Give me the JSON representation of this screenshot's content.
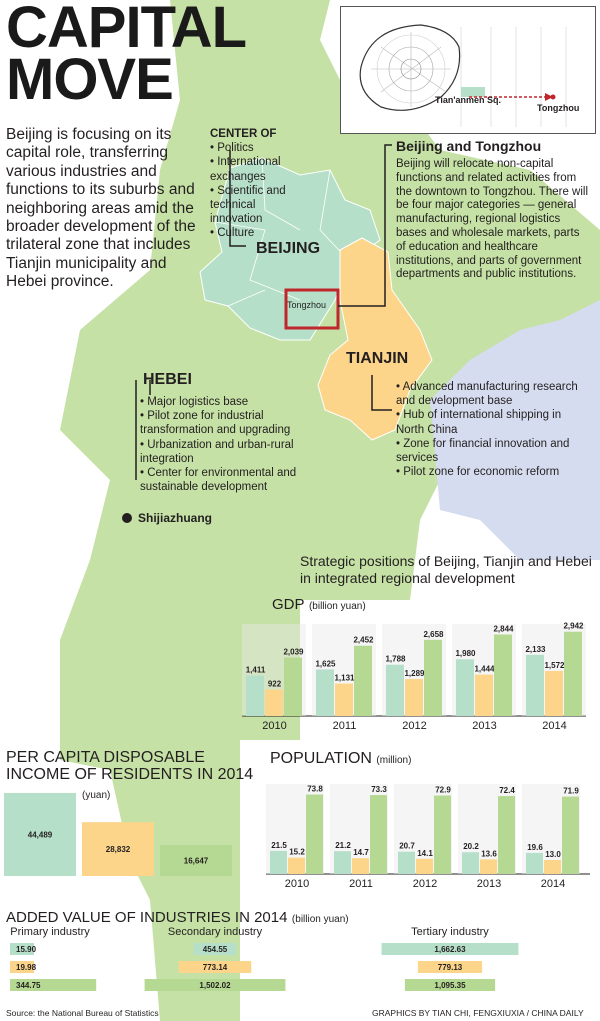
{
  "title": "CAPITAL\nMOVE",
  "intro": "Beijing is focusing on its capital role, transferring various industries and functions to its suburbs and neighboring areas amid the broader development of the trilateral zone that includes Tianjin municipality and Hebei province.",
  "colors": {
    "beijing": "#b6dfc9",
    "tianjin": "#fcd58a",
    "hebei": "#b5d992",
    "hebei_map": "#c5e1a5",
    "sea": "#d6dcef",
    "box": "#c0272d"
  },
  "center_of": {
    "heading": "CENTER OF",
    "items": [
      "• Politics",
      "• International exchanges",
      "• Scientific and technical innovation",
      "• Culture"
    ]
  },
  "map_labels": {
    "beijing": "BEIJING",
    "tianjin": "TIANJIN",
    "hebei": "HEBEI",
    "tongzhou": "Tongzhou",
    "shijiazhuang": "Shijiazhuang"
  },
  "inset": {
    "tiananmen": "Tian'anmen Sq.",
    "tongzhou": "Tongzhou"
  },
  "beijing_tongzhou": {
    "heading": "Beijing and Tongzhou",
    "text": "Beijing will relocate non-capital functions and related activities from the downtown to Tongzhou. There will be four major categories — general manufacturing, regional logistics bases and wholesale markets, parts of education and healthcare institutions, and parts of government departments and public institutions."
  },
  "tianjin_items": [
    "• Advanced manufacturing research and development base",
    "• Hub of international shipping in North China",
    "• Zone for financial innovation and services",
    "• Pilot zone for economic reform"
  ],
  "hebei_items": [
    "• Major logistics base",
    "• Pilot zone for industrial transformation and upgrading",
    "• Urbanization and urban-rural integration",
    "• Center for environmental and sustainable development"
  ],
  "strategic_caption": "Strategic positions of Beijing, Tianjin and Hebei in integrated regional development",
  "gdp_title": "GDP",
  "gdp_unit": "(billion yuan)",
  "pop_title": "POPULATION",
  "pop_unit": "(million)",
  "income_title": "PER CAPITA DISPOSABLE INCOME OF RESIDENTS IN 2014",
  "income_unit": "(yuan)",
  "added_title": "ADDED VALUE OF INDUSTRIES IN 2014",
  "added_unit": "(billion yuan)",
  "source": "Source: the National Bureau of Statistics",
  "credit": "GRAPHICS BY TIAN CHI, FENGXIUXIA / CHINA DAILY",
  "chart_data": [
    {
      "type": "bar",
      "title": "GDP",
      "unit": "(billion yuan)",
      "categories": [
        "2010",
        "2011",
        "2012",
        "2013",
        "2014"
      ],
      "series": [
        {
          "values": [
            1411,
            1625,
            1788,
            1980,
            2133
          ],
          "labels": [
            "1,411",
            "1,625",
            "1,788",
            "1,980",
            "2,133"
          ]
        },
        {
          "values": [
            922,
            1131,
            1289,
            1444,
            1572
          ],
          "labels": [
            "922",
            "1,131",
            "1,289",
            "1,444",
            "1,572"
          ]
        },
        {
          "values": [
            2039,
            2452,
            2658,
            2844,
            2942
          ],
          "labels": [
            "2,039",
            "2,452",
            "2,658",
            "2,844",
            "2,942"
          ]
        }
      ]
    },
    {
      "type": "bar",
      "title": "POPULATION",
      "unit": "(million)",
      "categories": [
        "2010",
        "2011",
        "2012",
        "2013",
        "2014"
      ],
      "series": [
        {
          "values": [
            21.5,
            21.2,
            20.7,
            20.2,
            19.6
          ],
          "labels": [
            "21.5",
            "21.2",
            "20.7",
            "20.2",
            "19.6"
          ]
        },
        {
          "values": [
            15.2,
            14.7,
            14.1,
            13.6,
            13.0
          ],
          "labels": [
            "15.2",
            "14.7",
            "14.1",
            "13.6",
            "13.0"
          ]
        },
        {
          "values": [
            73.8,
            73.3,
            72.9,
            72.4,
            71.9
          ],
          "labels": [
            "73.8",
            "73.3",
            "72.9",
            "72.4",
            "71.9"
          ]
        }
      ]
    },
    {
      "type": "bar",
      "title": "PER CAPITA DISPOSABLE INCOME OF RESIDENTS IN 2014",
      "unit": "(yuan)",
      "values": [
        44489,
        28832,
        16647
      ],
      "labels": [
        "44,489",
        "28,832",
        "16,647"
      ]
    },
    {
      "type": "bar",
      "title": "ADDED VALUE OF INDUSTRIES IN 2014",
      "unit": "(billion yuan)",
      "categories": [
        "Primary industry",
        "Secondary industry",
        "Tertiary industry"
      ],
      "series": [
        {
          "values": [
            15.9,
            454.55,
            1662.63
          ],
          "labels": [
            "15.90",
            "454.55",
            "1,662.63"
          ]
        },
        {
          "values": [
            19.98,
            773.14,
            779.13
          ],
          "labels": [
            "19.98",
            "773.14",
            "779.13"
          ]
        },
        {
          "values": [
            344.75,
            1502.02,
            1095.35
          ],
          "labels": [
            "344.75",
            "1,502.02",
            "1,095.35"
          ]
        }
      ]
    }
  ]
}
